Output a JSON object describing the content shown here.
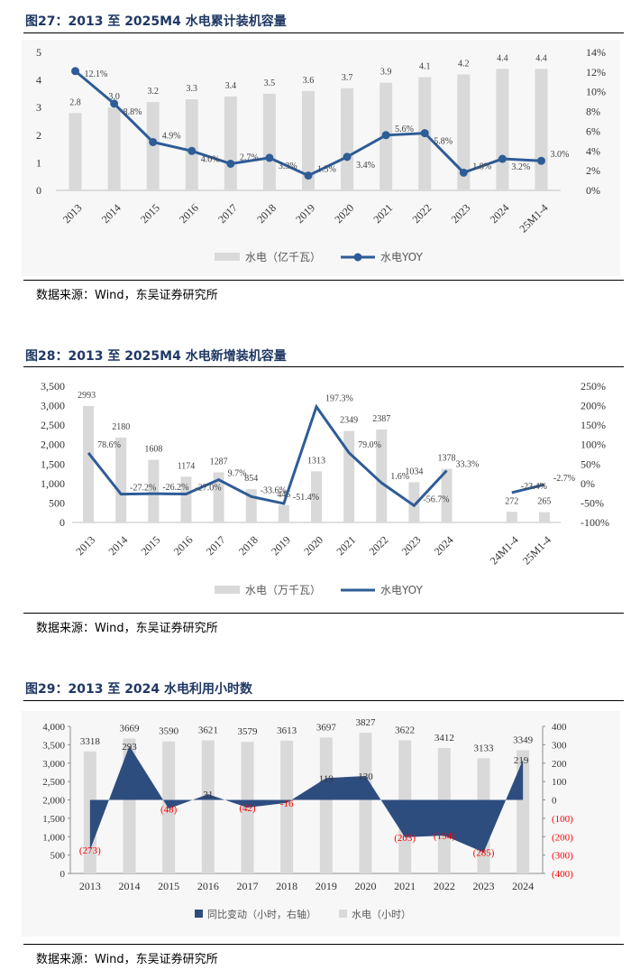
{
  "source_note": "数据来源：Wind，东吴证券研究所",
  "figures": [
    {
      "title": "图27：2013 至 2025M4 水电累计装机容量",
      "legend": {
        "bar": "水电（亿千瓦）",
        "line": "水电YOY"
      }
    },
    {
      "title": "图28：2013 至 2025M4 水电新增装机容量",
      "legend": {
        "bar": "水电（万千瓦）",
        "line": "水电YOY"
      }
    },
    {
      "title": "图29：2013 至 2024 水电利用小时数",
      "legend": {
        "area": "同比变动（小时，右轴）",
        "bar": "水电（小时）"
      }
    }
  ],
  "chart_data": [
    {
      "type": "bar",
      "title": "图27：2013 至 2025M4 水电累计装机容量",
      "categories": [
        "2013",
        "2014",
        "2015",
        "2016",
        "2017",
        "2018",
        "2019",
        "2020",
        "2021",
        "2022",
        "2023",
        "2024",
        "25M1-4"
      ],
      "series": [
        {
          "name": "水电（亿千瓦）",
          "type": "bar",
          "axis": "left",
          "values": [
            2.8,
            3.0,
            3.2,
            3.3,
            3.4,
            3.5,
            3.6,
            3.7,
            3.9,
            4.1,
            4.2,
            4.4,
            4.4
          ],
          "labels": [
            "2.8",
            "3.0",
            "3.2",
            "3.3",
            "3.4",
            "3.5",
            "3.6",
            "3.7",
            "3.9",
            "4.1",
            "4.2",
            "4.4",
            "4.4"
          ]
        },
        {
          "name": "水电YOY",
          "type": "line",
          "axis": "right",
          "values": [
            12.1,
            8.8,
            4.9,
            4.0,
            2.7,
            3.3,
            1.5,
            3.4,
            5.6,
            5.8,
            1.8,
            3.2,
            3.0
          ],
          "labels": [
            "12.1%",
            "8.8%",
            "4.9%",
            "4.0%",
            "2.7%",
            "3.3%",
            "1.5%",
            "3.4%",
            "5.6%",
            "5.8%",
            "1.8%",
            "3.2%",
            "3.0%"
          ]
        }
      ],
      "y_left": {
        "min": 0,
        "max": 5,
        "ticks": [
          "0",
          "1",
          "2",
          "3",
          "4",
          "5"
        ]
      },
      "y_right": {
        "min": 0,
        "max": 14,
        "ticks": [
          "0%",
          "2%",
          "4%",
          "6%",
          "8%",
          "10%",
          "12%",
          "14%"
        ]
      },
      "grid": false,
      "legend_position": "bottom"
    },
    {
      "type": "bar",
      "title": "图28：2013 至 2025M4 水电新增装机容量",
      "categories": [
        "2013",
        "2014",
        "2015",
        "2016",
        "2017",
        "2018",
        "2019",
        "2020",
        "2021",
        "2022",
        "2023",
        "2024",
        "",
        "24M1-4",
        "25M1-4"
      ],
      "series": [
        {
          "name": "水电（万千瓦）",
          "type": "bar",
          "axis": "left",
          "values": [
            2993,
            2180,
            1608,
            1174,
            1287,
            854,
            445,
            1313,
            2349,
            2387,
            1034,
            1378,
            null,
            272,
            265
          ],
          "labels": [
            "2993",
            "2180",
            "1608",
            "1174",
            "1287",
            "854",
            "445",
            "1313",
            "2349",
            "2387",
            "1034",
            "1378",
            "",
            "272",
            "265"
          ]
        },
        {
          "name": "水电YOY",
          "type": "line",
          "axis": "right",
          "values": [
            78.6,
            -27.2,
            -26.2,
            -27.0,
            9.7,
            -33.6,
            -51.4,
            197.3,
            79.0,
            1.6,
            -56.7,
            33.3,
            null,
            -23.4,
            -2.7
          ],
          "labels": [
            "78.6%",
            "-27.2%",
            "-26.2%",
            "-27.0%",
            "9.7%",
            "-33.6%",
            "-51.4%",
            "197.3%",
            "79.0%",
            "1.6%",
            "-56.7%",
            "33.3%",
            "",
            "-23.4%",
            "-2.7%"
          ]
        }
      ],
      "y_left": {
        "min": 0,
        "max": 3500,
        "ticks": [
          "0",
          "500",
          "1,000",
          "1,500",
          "2,000",
          "2,500",
          "3,000",
          "3,500"
        ]
      },
      "y_right": {
        "min": -100,
        "max": 250,
        "ticks": [
          "-100%",
          "-50%",
          "0%",
          "50%",
          "100%",
          "150%",
          "200%",
          "250%"
        ]
      },
      "grid": false,
      "legend_position": "bottom"
    },
    {
      "type": "bar",
      "title": "图29：2013 至 2024 水电利用小时数",
      "categories": [
        "2013",
        "2014",
        "2015",
        "2016",
        "2017",
        "2018",
        "2019",
        "2020",
        "2021",
        "2022",
        "2023",
        "2024"
      ],
      "series": [
        {
          "name": "水电（小时）",
          "type": "bar",
          "axis": "left",
          "values": [
            3318,
            3669,
            3590,
            3621,
            3579,
            3613,
            3697,
            3827,
            3622,
            3412,
            3133,
            3349
          ],
          "labels": [
            "3318",
            "3669",
            "3590",
            "3621",
            "3579",
            "3613",
            "3697",
            "3827",
            "3622",
            "3412",
            "3133",
            "3349"
          ]
        },
        {
          "name": "同比变动（小时，右轴）",
          "type": "area",
          "axis": "right",
          "values": [
            -273,
            293,
            -48,
            31,
            -42,
            -16,
            119,
            130,
            -203,
            -194,
            -285,
            219
          ],
          "labels": [
            "(273)",
            "293",
            "(48)",
            "31",
            "(42)",
            "-16",
            "119",
            "130",
            "(203)",
            "(194)",
            "(285)",
            "219"
          ]
        }
      ],
      "y_left": {
        "min": 0,
        "max": 4000,
        "ticks": [
          "0",
          "500",
          "1,000",
          "1,500",
          "2,000",
          "2,500",
          "3,000",
          "3,500",
          "4,000"
        ]
      },
      "y_right": {
        "min": -400,
        "max": 400,
        "ticks": [
          "(400)",
          "(300)",
          "(200)",
          "(100)",
          "0",
          "100",
          "200",
          "300",
          "400"
        ]
      },
      "grid": false,
      "legend_position": "bottom",
      "colors": {
        "bar": "#d9d9d9",
        "area": "#2e4d7f",
        "negative_label": "#ff0000"
      }
    }
  ]
}
